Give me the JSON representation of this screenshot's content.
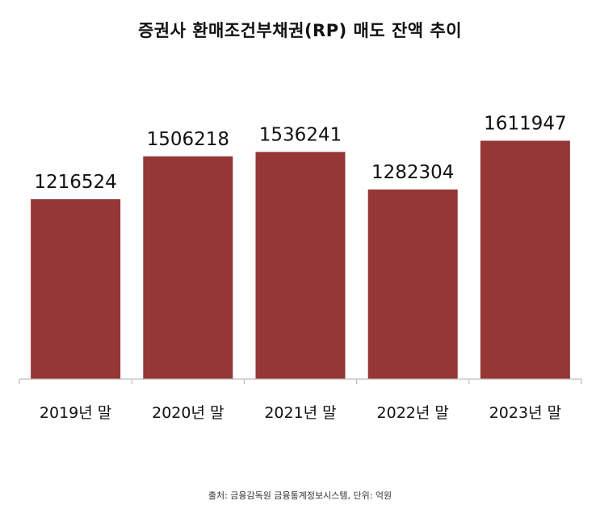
{
  "title": "증권사 환매조건부채권(RP) 매도 잔액 추이",
  "source_note": "출처: 금융감독원 금융통계정보시스템, 단위: 억원",
  "colors": {
    "bar": "#943735",
    "axis": "#bdbdbd",
    "text": "#111111"
  },
  "chart_data": {
    "type": "bar",
    "title": "증권사 환매조건부채권(RP) 매도 잔액 추이",
    "xlabel": "",
    "ylabel": "",
    "categories": [
      "2019년 말",
      "2020년 말",
      "2021년 말",
      "2022년 말",
      "2023년 말"
    ],
    "values": [
      1216524,
      1506218,
      1536241,
      1282304,
      1611947
    ],
    "ylim": [
      0,
      2400000
    ],
    "grid": false,
    "legend": "none",
    "data_labels": true
  }
}
